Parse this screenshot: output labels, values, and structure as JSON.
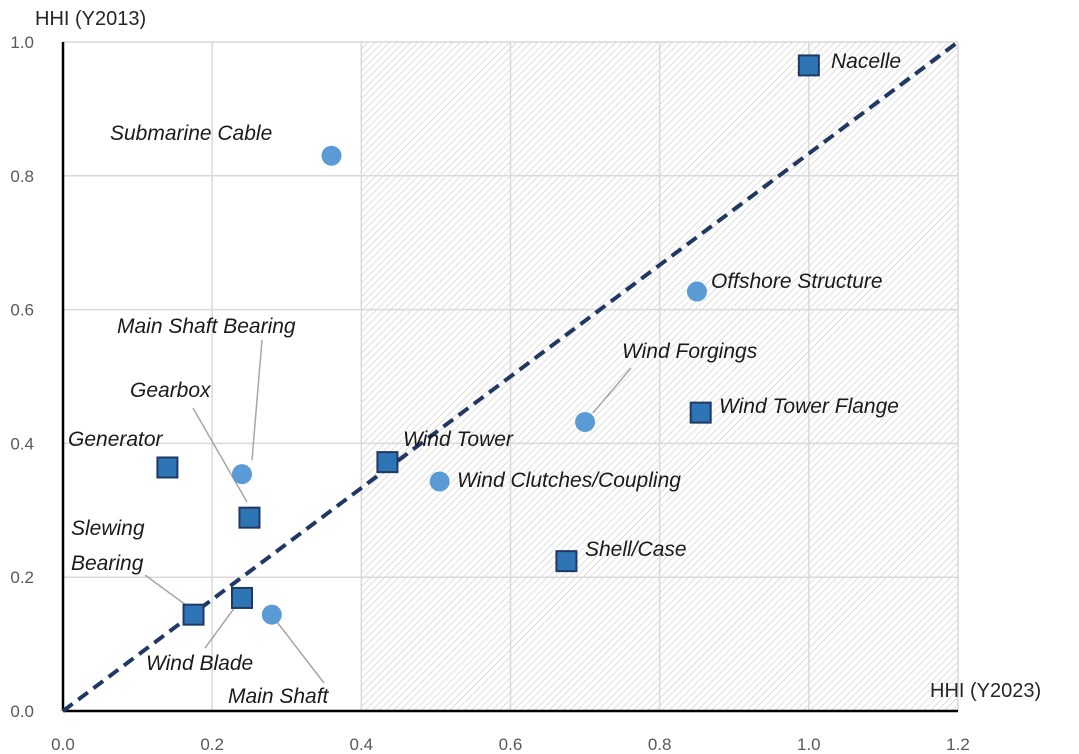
{
  "chart_data": {
    "type": "scatter",
    "title": "",
    "xlabel": "HHI (Y2023)",
    "ylabel": "HHI (Y2013)",
    "xlim": [
      0.0,
      1.2
    ],
    "ylim": [
      0.0,
      1.0
    ],
    "x_ticks": [
      "0.0",
      "0.2",
      "0.4",
      "0.6",
      "0.8",
      "1.0",
      "1.2"
    ],
    "y_ticks": [
      "0.0",
      "0.2",
      "0.4",
      "0.6",
      "0.8",
      "1.0"
    ],
    "grid": true,
    "shaded_region": {
      "x_from": 0.4,
      "x_to": 1.2,
      "pattern": "diagonal hatch"
    },
    "reference_line": {
      "from": [
        0.0,
        0.0
      ],
      "to": [
        1.2,
        1.0
      ],
      "style": "dashed",
      "color": "#1f3864"
    },
    "marker_colors": {
      "square": "#2e75b6",
      "square_edge": "#1f3864",
      "circle": "#5b9bd5"
    },
    "points": [
      {
        "label": "Nacelle",
        "x": 1.0,
        "y": 0.965,
        "marker": "square"
      },
      {
        "label": "Submarine Cable",
        "x": 0.36,
        "y": 0.83,
        "marker": "circle"
      },
      {
        "label": "Offshore Structure",
        "x": 0.85,
        "y": 0.627,
        "marker": "circle"
      },
      {
        "label": "Main Shaft Bearing",
        "x": 0.24,
        "y": 0.354,
        "marker": "circle"
      },
      {
        "label": "Wind Forgings",
        "x": 0.7,
        "y": 0.432,
        "marker": "circle"
      },
      {
        "label": "Gearbox",
        "x": 0.25,
        "y": 0.289,
        "marker": "square"
      },
      {
        "label": "Wind Tower Flange",
        "x": 0.855,
        "y": 0.446,
        "marker": "square"
      },
      {
        "label": "Generator",
        "x": 0.14,
        "y": 0.364,
        "marker": "square"
      },
      {
        "label": "Wind Tower",
        "x": 0.435,
        "y": 0.372,
        "marker": "square"
      },
      {
        "label": "Wind Clutches/Coupling",
        "x": 0.505,
        "y": 0.343,
        "marker": "circle"
      },
      {
        "label": "Slewing Bearing",
        "x": 0.175,
        "y": 0.144,
        "marker": "square"
      },
      {
        "label": "Shell/Case",
        "x": 0.675,
        "y": 0.224,
        "marker": "square"
      },
      {
        "label": "Wind Blade",
        "x": 0.24,
        "y": 0.169,
        "marker": "square"
      },
      {
        "label": "Main Shaft",
        "x": 0.28,
        "y": 0.144,
        "marker": "circle"
      }
    ]
  }
}
